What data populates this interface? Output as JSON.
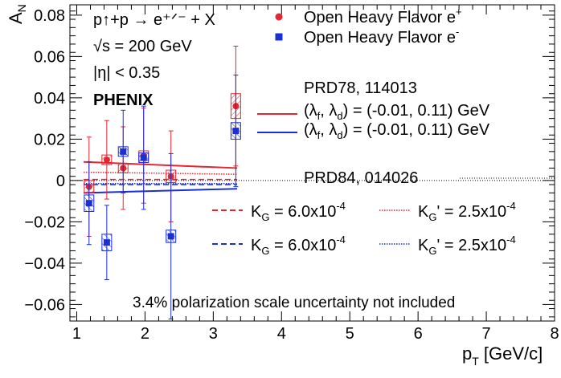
{
  "chart_data": {
    "type": "scatter",
    "xlabel": "p",
    "xlabel_sub": "T",
    "xlabel_unit": " [GeV/c]",
    "ylabel": "A",
    "ylabel_sub": "N",
    "xlim": [
      0.9,
      8.0
    ],
    "ylim": [
      -0.068,
      0.085
    ],
    "x_ticks": [
      1,
      2,
      3,
      4,
      5,
      6,
      7,
      8
    ],
    "y_ticks": [
      -0.06,
      -0.04,
      -0.02,
      0,
      0.02,
      0.04,
      0.06,
      0.08
    ],
    "y_tick_labels": [
      "−0.06",
      "−0.04",
      "−0.02",
      "0",
      "0.02",
      "0.04",
      "0.06",
      "0.08"
    ],
    "grid": false,
    "colors": {
      "positron": "#e3262f",
      "electron": "#1a2fd6",
      "zero_line": "#000000"
    },
    "info": {
      "reaction": "p↑+p → e⁺ᐟ⁻ + X",
      "energy": "√s = 200 GeV",
      "eta": "|η| < 0.35",
      "experiment": "PHENIX"
    },
    "series": [
      {
        "name": "Open Heavy Flavor e⁺",
        "marker": "circle",
        "points": [
          {
            "x": 1.18,
            "y": -0.003,
            "err": 0.024,
            "sys": 0.003
          },
          {
            "x": 1.44,
            "y": 0.01,
            "err": 0.019,
            "sys": 0.002
          },
          {
            "x": 1.68,
            "y": 0.006,
            "err": 0.02,
            "sys": 0.002
          },
          {
            "x": 1.98,
            "y": 0.012,
            "err": 0.023,
            "sys": 0.002
          },
          {
            "x": 2.38,
            "y": 0.002,
            "err": 0.022,
            "sys": 0.003
          },
          {
            "x": 3.33,
            "y": 0.036,
            "err": 0.029,
            "sys": 0.006
          }
        ]
      },
      {
        "name": "Open Heavy Flavor e⁻",
        "marker": "square",
        "points": [
          {
            "x": 1.18,
            "y": -0.011,
            "err": 0.02,
            "sys": 0.004
          },
          {
            "x": 1.44,
            "y": -0.03,
            "err": 0.018,
            "sys": 0.004
          },
          {
            "x": 1.68,
            "y": 0.014,
            "err": 0.02,
            "sys": 0.002
          },
          {
            "x": 1.98,
            "y": 0.011,
            "err": 0.025,
            "sys": 0.002
          },
          {
            "x": 2.38,
            "y": -0.027,
            "err": 0.04,
            "sys": 0.003
          },
          {
            "x": 3.33,
            "y": 0.024,
            "err": 0.027,
            "sys": 0.004
          }
        ]
      }
    ],
    "theory_curves": [
      {
        "color": "#e3262f",
        "style": "solid",
        "x": [
          1.1,
          3.35
        ],
        "y": [
          0.009,
          0.006
        ]
      },
      {
        "color": "#1a2fd6",
        "style": "solid",
        "x": [
          1.1,
          3.35
        ],
        "y": [
          -0.006,
          -0.004
        ]
      },
      {
        "color": "#e3262f",
        "style": "dashed",
        "x": [
          1.1,
          3.35
        ],
        "y": [
          0.0005,
          0.0005
        ]
      },
      {
        "color": "#1a2fd6",
        "style": "dashed",
        "x": [
          1.1,
          3.35
        ],
        "y": [
          -0.002,
          -0.002
        ]
      },
      {
        "color": "#e3262f",
        "style": "dotted",
        "x": [
          1.1,
          3.35
        ],
        "y": [
          0.004,
          0.003
        ]
      },
      {
        "color": "#1a2fd6",
        "style": "dotted",
        "x": [
          1.1,
          3.35
        ],
        "y": [
          -0.0015,
          -0.0015
        ]
      }
    ],
    "legend": {
      "placement": "top-right",
      "positron_label": "Open Heavy Flavor e",
      "positron_sup": "+",
      "electron_label": "Open Heavy Flavor e",
      "electron_sup": "-",
      "ref1": "PRD78, 114013",
      "ref1_red": "(λ_f, λ_d) = (-0.01, 0.11) GeV",
      "ref1_blue": "(λ_f, λ_d) = (-0.01, 0.11) GeV",
      "ref2": "PRD84, 014026",
      "kg_red": "K_G = 6.0x10^-4",
      "kgp_red": "K_G' = 2.5x10^-4",
      "kg_blue": "K_G = 6.0x10^-4",
      "kgp_blue": "K_G' = 2.5x10^-4"
    },
    "annotation": "3.4% polarization scale uncertainty not included"
  }
}
